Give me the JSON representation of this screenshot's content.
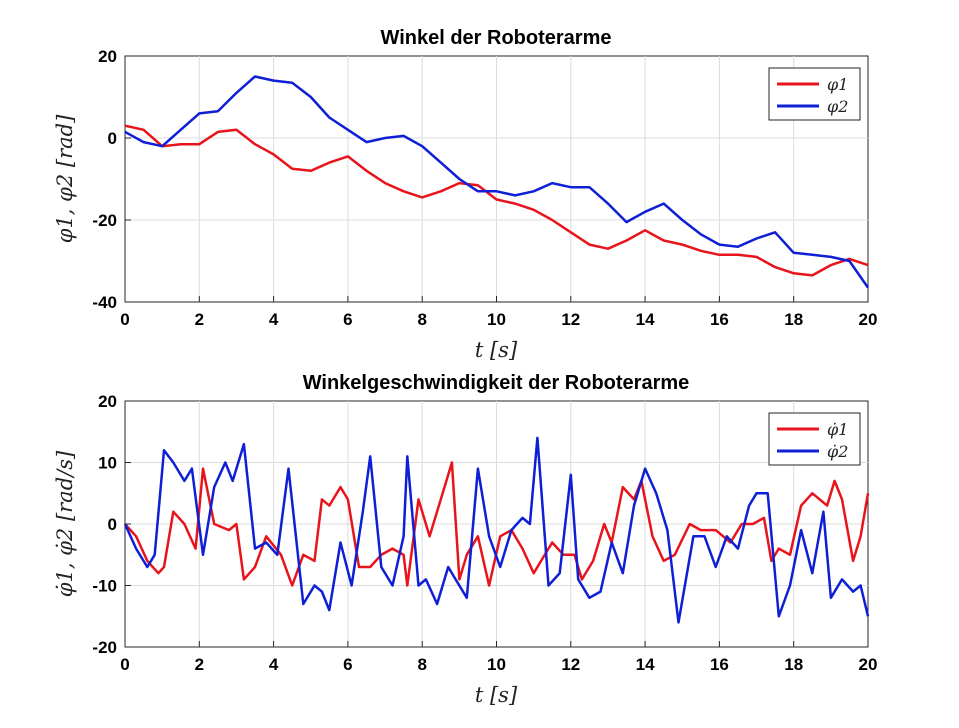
{
  "chart_data": [
    {
      "type": "line",
      "title": "Winkel der Roboterarme",
      "xlabel": "t [s]",
      "ylabel": "φ1, φ2 [rad]",
      "xlim": [
        0,
        20
      ],
      "ylim": [
        -40,
        20
      ],
      "xticks": [
        "0",
        "2",
        "4",
        "6",
        "8",
        "10",
        "12",
        "14",
        "16",
        "18",
        "20"
      ],
      "yticks": [
        "20",
        "0",
        "-20",
        "-40"
      ],
      "grid": true,
      "legend_position": "top-right",
      "series": [
        {
          "name": "φ1",
          "color": "#e8141b",
          "x": [
            0,
            0.5,
            1,
            1.5,
            2,
            2.5,
            3,
            3.5,
            4,
            4.5,
            5,
            5.5,
            6,
            6.5,
            7,
            7.5,
            8,
            8.5,
            9,
            9.5,
            10,
            10.5,
            11,
            11.5,
            12,
            12.5,
            13,
            13.5,
            14,
            14.5,
            15,
            15.5,
            16,
            16.5,
            17,
            17.5,
            18,
            18.5,
            19,
            19.5,
            20
          ],
          "values": [
            3,
            2,
            -2,
            -1.5,
            -1.5,
            1.5,
            2,
            -1.5,
            -4,
            -7.5,
            -8,
            -6,
            -4.5,
            -8,
            -11,
            -13,
            -14.5,
            -13,
            -11,
            -11.5,
            -15,
            -16,
            -17.5,
            -20,
            -23,
            -26,
            -27,
            -25,
            -22.5,
            -25,
            -26,
            -27.5,
            -28.5,
            -28.5,
            -29,
            -31.5,
            -33,
            -33.5,
            -31,
            -29.5,
            -31
          ]
        },
        {
          "name": "φ2",
          "color": "#0f1fd6",
          "x": [
            0,
            0.5,
            1,
            1.5,
            2,
            2.5,
            3,
            3.5,
            4,
            4.5,
            5,
            5.5,
            6,
            6.5,
            7,
            7.5,
            8,
            8.5,
            9,
            9.5,
            10,
            10.5,
            11,
            11.5,
            12,
            12.5,
            13,
            13.5,
            14,
            14.5,
            15,
            15.5,
            16,
            16.5,
            17,
            17.5,
            18,
            18.5,
            19,
            19.5,
            20
          ],
          "values": [
            1.5,
            -1,
            -2,
            2,
            6,
            6.5,
            11,
            15,
            14,
            13.5,
            10,
            5,
            2,
            -1,
            0,
            0.5,
            -2,
            -6,
            -10,
            -13,
            -13,
            -14,
            -13,
            -11,
            -12,
            -12,
            -16,
            -20.5,
            -18,
            -16,
            -20,
            -23.5,
            -26,
            -26.5,
            -24.5,
            -23,
            -28,
            -28.5,
            -29,
            -30,
            -36.5
          ]
        }
      ]
    },
    {
      "type": "line",
      "title": "Winkelgeschwindigkeit der Roboterarme",
      "xlabel": "t [s]",
      "ylabel": "φ̇1, φ̇2 [rad/s]",
      "xlim": [
        0,
        20
      ],
      "ylim": [
        -20,
        20
      ],
      "xticks": [
        "0",
        "2",
        "4",
        "6",
        "8",
        "10",
        "12",
        "14",
        "16",
        "18",
        "20"
      ],
      "yticks": [
        "20",
        "10",
        "0",
        "-10",
        "-20"
      ],
      "grid": true,
      "legend_position": "top-right",
      "series": [
        {
          "name": "φ̇1",
          "color": "#e8141b",
          "x": [
            0,
            0.3,
            0.6,
            0.9,
            1.05,
            1.3,
            1.6,
            1.9,
            2.1,
            2.4,
            2.8,
            3.0,
            3.2,
            3.5,
            3.8,
            4.2,
            4.5,
            4.8,
            5.1,
            5.3,
            5.5,
            5.8,
            6.0,
            6.3,
            6.6,
            6.9,
            7.2,
            7.5,
            7.6,
            7.9,
            8.2,
            8.6,
            8.8,
            9.0,
            9.2,
            9.5,
            9.8,
            10.1,
            10.4,
            10.7,
            11.0,
            11.2,
            11.5,
            11.8,
            12.1,
            12.3,
            12.6,
            12.9,
            13.1,
            13.4,
            13.7,
            13.9,
            14.2,
            14.5,
            14.8,
            15.2,
            15.5,
            15.9,
            16.3,
            16.6,
            16.9,
            17.2,
            17.4,
            17.6,
            17.9,
            18.2,
            18.5,
            18.9,
            19.1,
            19.3,
            19.6,
            19.8,
            20.0
          ],
          "values": [
            0,
            -2,
            -6,
            -8,
            -7,
            2,
            0,
            -4,
            9,
            0,
            -1,
            0,
            -9,
            -7,
            -2,
            -5,
            -10,
            -5,
            -6,
            4,
            3,
            6,
            4,
            -7,
            -7,
            -5,
            -4,
            -5,
            -10,
            4,
            -2,
            6,
            10,
            -9,
            -5,
            -2,
            -10,
            -2,
            -1,
            -4,
            -8,
            -6,
            -3,
            -5,
            -5,
            -9,
            -6,
            0,
            -3,
            6,
            4,
            7,
            -2,
            -6,
            -5,
            0,
            -1,
            -1,
            -3,
            0,
            0,
            1,
            -6,
            -4,
            -5,
            3,
            5,
            3,
            7,
            4,
            -6,
            -2,
            5
          ]
        },
        {
          "name": "φ̇2",
          "color": "#0f1fd6",
          "x": [
            0,
            0.3,
            0.6,
            0.8,
            1.05,
            1.3,
            1.6,
            1.8,
            2.1,
            2.4,
            2.7,
            2.9,
            3.2,
            3.5,
            3.8,
            4.1,
            4.4,
            4.8,
            5.1,
            5.3,
            5.5,
            5.8,
            6.1,
            6.4,
            6.6,
            6.9,
            7.2,
            7.5,
            7.6,
            7.9,
            8.1,
            8.4,
            8.7,
            8.9,
            9.2,
            9.5,
            9.8,
            10.1,
            10.4,
            10.7,
            10.9,
            11.1,
            11.4,
            11.7,
            12.0,
            12.2,
            12.5,
            12.8,
            13.1,
            13.4,
            13.7,
            14.0,
            14.3,
            14.6,
            14.9,
            15.3,
            15.6,
            15.9,
            16.2,
            16.5,
            16.8,
            17.0,
            17.3,
            17.6,
            17.9,
            18.2,
            18.5,
            18.8,
            19.0,
            19.3,
            19.6,
            19.8,
            20.0
          ],
          "values": [
            0,
            -4,
            -7,
            -5,
            12,
            10,
            7,
            9,
            -5,
            6,
            10,
            7,
            13,
            -4,
            -3,
            -5,
            9,
            -13,
            -10,
            -11,
            -14,
            -3,
            -10,
            2,
            11,
            -7,
            -10,
            -2,
            11,
            -10,
            -9,
            -13,
            -7,
            -9,
            -12,
            9,
            -2,
            -7,
            -1,
            1,
            0,
            14,
            -10,
            -8,
            8,
            -9,
            -12,
            -11,
            -3,
            -8,
            3,
            9,
            5,
            -1,
            -16,
            -2,
            -2,
            -7,
            -2,
            -4,
            3,
            5,
            5,
            -15,
            -10,
            -1,
            -8,
            2,
            -12,
            -9,
            -11,
            -10,
            -15
          ]
        }
      ]
    }
  ]
}
